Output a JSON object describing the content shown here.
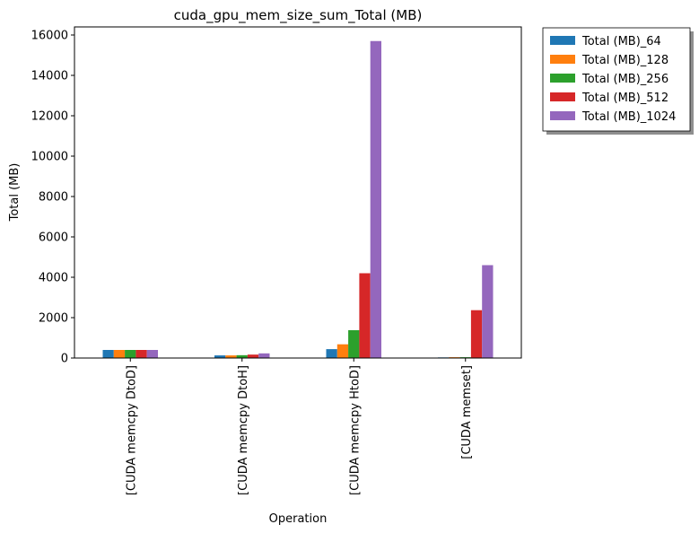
{
  "chart_data": {
    "type": "bar",
    "title": "cuda_gpu_mem_size_sum_Total (MB)",
    "xlabel": "Operation",
    "ylabel": "Total (MB)",
    "ylim": [
      0,
      16400
    ],
    "yticks": [
      0,
      2000,
      4000,
      6000,
      8000,
      10000,
      12000,
      14000,
      16000
    ],
    "grid": false,
    "legend_position": "outside-top-right",
    "categories": [
      "[CUDA memcpy DtoD]",
      "[CUDA memcpy DtoH]",
      "[CUDA memcpy HtoD]",
      "[CUDA memset]"
    ],
    "series": [
      {
        "name": "Total (MB)_64",
        "color": "#1f77b4",
        "values": [
          400,
          130,
          440,
          30
        ]
      },
      {
        "name": "Total (MB)_128",
        "color": "#ff7f0e",
        "values": [
          400,
          130,
          680,
          40
        ]
      },
      {
        "name": "Total (MB)_256",
        "color": "#2ca02c",
        "values": [
          400,
          140,
          1380,
          40
        ]
      },
      {
        "name": "Total (MB)_512",
        "color": "#d62728",
        "values": [
          400,
          170,
          4200,
          2370
        ]
      },
      {
        "name": "Total (MB)_1024",
        "color": "#9467bd",
        "values": [
          400,
          230,
          15700,
          4600
        ]
      }
    ]
  }
}
